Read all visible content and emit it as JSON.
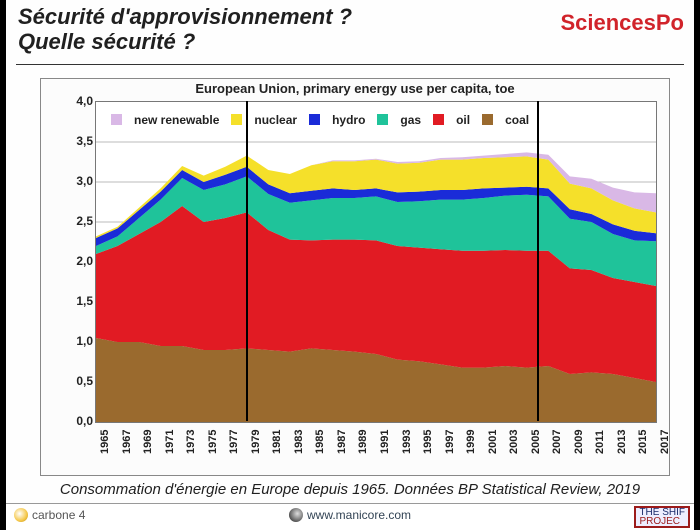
{
  "header": {
    "title_line1": "Sécurité d'approvisionnement ?",
    "title_line2": "Quelle sécurité ?",
    "right_logo": "SciencesPo"
  },
  "caption": "Consommation d'énergie en Europe depuis 1965. Données BP Statistical Review, 2019",
  "footer": {
    "left": "carbone 4",
    "center": "www.manicore.com",
    "right_l1": "THE SHIF",
    "right_l2": "PROJEC"
  },
  "chart": {
    "type": "stacked-area",
    "title": "European Union, primary energy use per capita, toe",
    "background_color": "#ffffff",
    "grid_color": "#bbbbbb",
    "ylim": [
      0.0,
      4.0
    ],
    "ytick_step": 0.5,
    "y_ticks": [
      "0,0",
      "0,5",
      "1,0",
      "1,5",
      "2,0",
      "2,5",
      "3,0",
      "3,5",
      "4,0"
    ],
    "x_years": [
      1965,
      1967,
      1969,
      1971,
      1973,
      1975,
      1977,
      1979,
      1981,
      1983,
      1985,
      1987,
      1989,
      1991,
      1993,
      1995,
      1997,
      1999,
      2001,
      2003,
      2005,
      2007,
      2009,
      2011,
      2013,
      2015,
      2017
    ],
    "x_range": [
      1965,
      2017
    ],
    "vlines_at_years": [
      1979,
      2006
    ],
    "legend_order": [
      "new_renewable",
      "nuclear",
      "hydro",
      "gas",
      "oil",
      "coal"
    ],
    "series_labels": {
      "new_renewable": "new renewable",
      "nuclear": "nuclear",
      "hydro": "hydro",
      "gas": "gas",
      "oil": "oil",
      "coal": "coal"
    },
    "series_colors": {
      "coal": "#9a6a2e",
      "oil": "#e11b23",
      "gas": "#1fc39a",
      "hydro": "#1a2bd8",
      "nuclear": "#f5e02a",
      "new_renewable": "#d9b8e6"
    },
    "data": {
      "years": [
        1965,
        1967,
        1969,
        1971,
        1973,
        1975,
        1977,
        1979,
        1981,
        1983,
        1985,
        1987,
        1989,
        1991,
        1993,
        1995,
        1997,
        1999,
        2001,
        2003,
        2005,
        2007,
        2009,
        2011,
        2013,
        2015,
        2017
      ],
      "coal": [
        1.05,
        1.0,
        1.0,
        0.95,
        0.95,
        0.9,
        0.9,
        0.92,
        0.9,
        0.88,
        0.92,
        0.9,
        0.88,
        0.85,
        0.78,
        0.76,
        0.72,
        0.68,
        0.68,
        0.7,
        0.68,
        0.7,
        0.6,
        0.62,
        0.6,
        0.55,
        0.5
      ],
      "oil": [
        1.05,
        1.2,
        1.35,
        1.55,
        1.75,
        1.6,
        1.65,
        1.7,
        1.5,
        1.4,
        1.35,
        1.38,
        1.4,
        1.42,
        1.42,
        1.42,
        1.44,
        1.46,
        1.46,
        1.45,
        1.46,
        1.44,
        1.32,
        1.28,
        1.2,
        1.2,
        1.2
      ],
      "gas": [
        0.1,
        0.12,
        0.2,
        0.28,
        0.35,
        0.4,
        0.42,
        0.45,
        0.45,
        0.46,
        0.5,
        0.52,
        0.52,
        0.55,
        0.55,
        0.58,
        0.62,
        0.64,
        0.66,
        0.68,
        0.7,
        0.68,
        0.62,
        0.6,
        0.55,
        0.52,
        0.56
      ],
      "hydro": [
        0.1,
        0.1,
        0.1,
        0.1,
        0.1,
        0.1,
        0.12,
        0.12,
        0.12,
        0.12,
        0.12,
        0.12,
        0.1,
        0.1,
        0.12,
        0.12,
        0.12,
        0.12,
        0.12,
        0.1,
        0.1,
        0.1,
        0.12,
        0.1,
        0.12,
        0.12,
        0.1
      ],
      "nuclear": [
        0.02,
        0.02,
        0.03,
        0.04,
        0.05,
        0.08,
        0.1,
        0.14,
        0.18,
        0.24,
        0.32,
        0.34,
        0.36,
        0.36,
        0.36,
        0.36,
        0.38,
        0.38,
        0.38,
        0.38,
        0.38,
        0.36,
        0.32,
        0.32,
        0.3,
        0.28,
        0.26
      ],
      "new_renewable": [
        0.0,
        0.0,
        0.0,
        0.0,
        0.0,
        0.0,
        0.0,
        0.0,
        0.0,
        0.0,
        0.0,
        0.01,
        0.01,
        0.01,
        0.02,
        0.02,
        0.02,
        0.03,
        0.03,
        0.04,
        0.05,
        0.06,
        0.09,
        0.12,
        0.16,
        0.2,
        0.24
      ]
    },
    "label_fontsize": 12,
    "title_fontsize": 13,
    "tick_fontsize": 11
  }
}
